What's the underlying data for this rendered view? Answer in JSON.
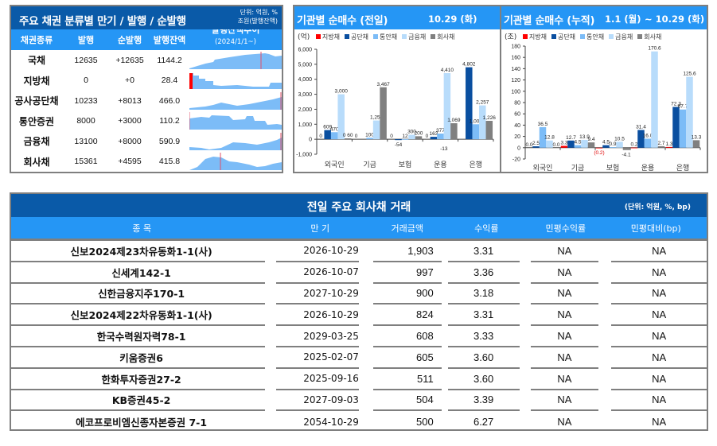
{
  "bond_summary": {
    "title": "주요 채권 분류별 만기 / 발행 / 순발행",
    "unit_line1": "단위: 억원, %",
    "unit_line2": "조원(발행잔액)",
    "columns": {
      "type": "채권종류",
      "issuance": "발행",
      "net_issuance": "순발행",
      "balance": "발행잔액",
      "trend": "발행잔액추이",
      "trend_period": "(2024/1/1~)"
    },
    "rows": [
      {
        "type": "국채",
        "issuance": "12635",
        "net_issuance": "+12635",
        "balance": "1144.2"
      },
      {
        "type": "지방채",
        "issuance": "0",
        "net_issuance": "+0",
        "balance": "28.4"
      },
      {
        "type": "공사공단채",
        "issuance": "10233",
        "net_issuance": "+8013",
        "balance": "466.0"
      },
      {
        "type": "통안증권",
        "issuance": "8000",
        "net_issuance": "+3000",
        "balance": "110.2"
      },
      {
        "type": "금융채",
        "issuance": "13100",
        "net_issuance": "+8000",
        "balance": "590.9"
      },
      {
        "type": "회사채",
        "issuance": "15361",
        "net_issuance": "+4595",
        "balance": "415.8"
      }
    ]
  },
  "daily_chart": {
    "title": "기관별 순매수 (전일)",
    "date": "10.29 (화)",
    "unit": "(억)"
  },
  "cumulative_chart": {
    "title": "기관별 순매수 (누적)",
    "date_from": "1.1 (월)",
    "date_to": "~ 10.29 (화)",
    "unit": "(조)"
  },
  "legend": [
    {
      "label": "지방채",
      "color": "#ff0000"
    },
    {
      "label": "공단채",
      "color": "#0a4fa0"
    },
    {
      "label": "통안채",
      "color": "#7cbcf7"
    },
    {
      "label": "금융채",
      "color": "#b8dcfb"
    },
    {
      "label": "회사채",
      "color": "#808080"
    }
  ],
  "chart_data": [
    {
      "type": "bar",
      "title": "기관별 순매수 (전일) 10.29 (화)",
      "ylabel": "(억)",
      "ylim": [
        -1000,
        6000
      ],
      "yticks": [
        "-1,000",
        "0",
        "1,000",
        "2,000",
        "3,000",
        "4,000",
        "5,000",
        "6,000"
      ],
      "categories": [
        "외국인",
        "기금",
        "보험",
        "운용",
        "은행"
      ],
      "series": [
        {
          "name": "지방채",
          "values": [
            0,
            0,
            0,
            0,
            0
          ],
          "labels": [
            "0",
            "0",
            "0",
            "0",
            ""
          ]
        },
        {
          "name": "공단채",
          "values": [
            609,
            0,
            -54,
            163,
            4802
          ],
          "labels": [
            "609",
            "",
            "-54",
            "163",
            "4,802"
          ]
        },
        {
          "name": "통안채",
          "values": [
            470,
            100,
            12,
            377,
            1000
          ],
          "labels": [
            "470",
            "100",
            "12",
            "377",
            "1,000"
          ]
        },
        {
          "name": "금융채",
          "values": [
            3000,
            1250,
            300,
            4410,
            2257
          ],
          "labels": [
            "3,000",
            "1,250",
            "300",
            "4,410",
            "2,257"
          ]
        },
        {
          "name": "회사채",
          "values": [
            60,
            3467,
            200,
            1069,
            1226
          ],
          "labels": [
            "0 60",
            "3,467",
            "200",
            "1,069",
            "1,226"
          ]
        }
      ],
      "annotations": [
        "-13"
      ]
    },
    {
      "type": "bar",
      "title": "기관별 순매수 (누적) 1.1 (월) ~ 10.29 (화)",
      "ylabel": "(조)",
      "ylim": [
        -20,
        180
      ],
      "yticks": [
        "-20",
        "0",
        "20",
        "40",
        "60",
        "80",
        "100",
        "120",
        "140",
        "160",
        "180"
      ],
      "categories": [
        "외국인",
        "기금",
        "보험",
        "운용",
        "은행"
      ],
      "series": [
        {
          "name": "지방채",
          "values": [
            0.0,
            3.3,
            -0.2,
            0.2,
            1.3
          ],
          "labels": [
            "0.0",
            "3.3",
            "(0.2)",
            "0.2",
            "1.3"
          ]
        },
        {
          "name": "공단채",
          "values": [
            2.5,
            12.7,
            4.5,
            31.4,
            72.3
          ],
          "labels": [
            "2.5",
            "12.7",
            "4.5",
            "31.4",
            "72.3"
          ]
        },
        {
          "name": "통안채",
          "values": [
            36.5,
            4.5,
            0.9,
            16.0,
            67.7
          ],
          "labels": [
            "36.5",
            "4.5",
            "0.9",
            "16.0",
            "67.7"
          ]
        },
        {
          "name": "금융채",
          "values": [
            12.8,
            13.9,
            10.5,
            170.6,
            125.6
          ],
          "labels": [
            "12.8",
            "13.9",
            "10.5",
            "170.6",
            "125.6"
          ]
        },
        {
          "name": "회사채",
          "values": [
            0.0,
            9.4,
            -4.1,
            2.7,
            13.3
          ],
          "labels": [
            "0.0",
            "9.4",
            "-4.1",
            "2.7",
            "13.3"
          ]
        }
      ]
    }
  ],
  "trades": {
    "title": "전일 주요 회사채 거래",
    "unit": "(단위: 억원, %, bp)",
    "columns": {
      "name": "종 목",
      "maturity": "만 기",
      "amount": "거래금액",
      "yield": "수익률",
      "private_yield": "민평수익률",
      "diff": "민평대비(bp)"
    },
    "rows": [
      {
        "name": "신보2024제23차유동화1-1(사)",
        "maturity": "2026-10-29",
        "amount": "1,903",
        "yield": "3.31",
        "private_yield": "NA",
        "diff": "NA"
      },
      {
        "name": "신세계142-1",
        "maturity": "2026-10-07",
        "amount": "997",
        "yield": "3.36",
        "private_yield": "NA",
        "diff": "NA"
      },
      {
        "name": "신한금융지주170-1",
        "maturity": "2027-10-29",
        "amount": "900",
        "yield": "3.18",
        "private_yield": "NA",
        "diff": "NA"
      },
      {
        "name": "신보2024제22차유동화1-1(사)",
        "maturity": "2026-10-29",
        "amount": "824",
        "yield": "3.31",
        "private_yield": "NA",
        "diff": "NA"
      },
      {
        "name": "한국수력원자력78-1",
        "maturity": "2029-03-25",
        "amount": "608",
        "yield": "3.33",
        "private_yield": "NA",
        "diff": "NA"
      },
      {
        "name": "키움증권6",
        "maturity": "2025-02-07",
        "amount": "605",
        "yield": "3.60",
        "private_yield": "NA",
        "diff": "NA"
      },
      {
        "name": "한화투자증권27-2",
        "maturity": "2025-09-16",
        "amount": "511",
        "yield": "3.60",
        "private_yield": "NA",
        "diff": "NA"
      },
      {
        "name": "KB증권45-2",
        "maturity": "2027-09-03",
        "amount": "504",
        "yield": "3.39",
        "private_yield": "NA",
        "diff": "NA"
      },
      {
        "name": "에코프로비엠신종자본증권 7-1",
        "maturity": "2054-10-29",
        "amount": "500",
        "yield": "6.27",
        "private_yield": "NA",
        "diff": "NA"
      }
    ]
  }
}
